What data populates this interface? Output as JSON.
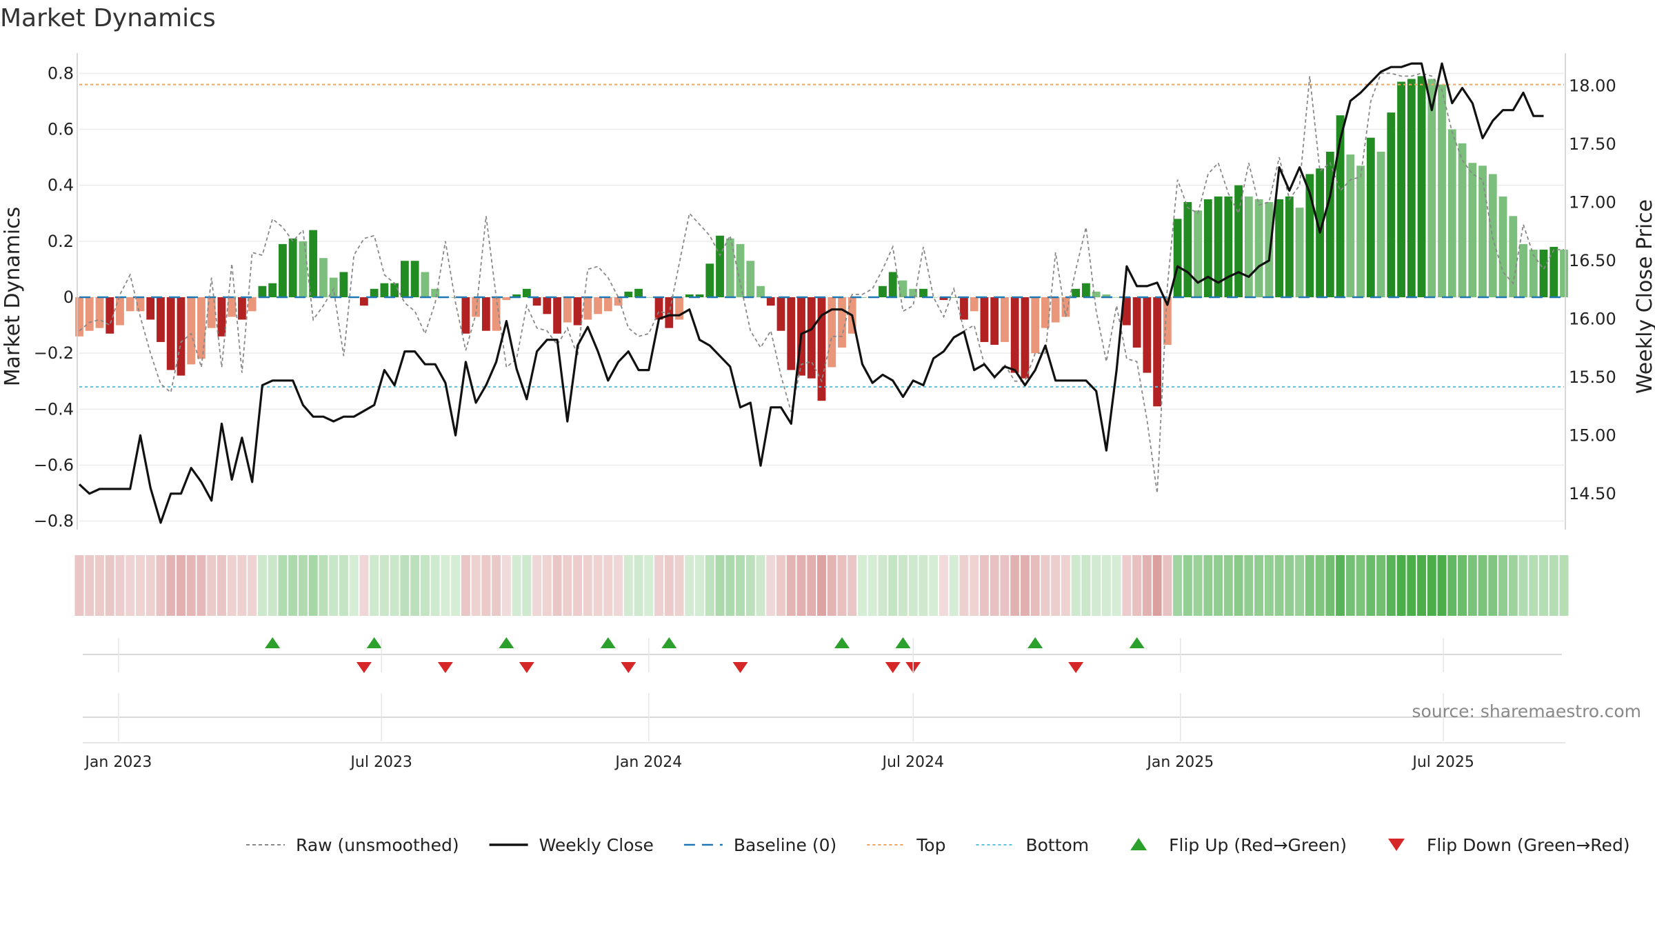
{
  "chart_data": {
    "type": "bar",
    "title": "Market Dynamics",
    "source": "source: sharemaestro.com",
    "ylabel_left": "Market Dynamics",
    "ylabel_right": "Weekly Close Price",
    "ylim_left": [
      -0.86,
      0.86
    ],
    "ylim_right": [
      14.12,
      18.25
    ],
    "yticks_left": [
      0.8,
      0.6,
      0.4,
      0.2,
      0,
      -0.2,
      -0.4,
      -0.6,
      -0.8
    ],
    "ytick_labels_left": [
      "0.8",
      "0.6",
      "0.4",
      "0.2",
      "0",
      "−0.2",
      "−0.4",
      "−0.6",
      "−0.8"
    ],
    "yticks_right": [
      18.0,
      17.5,
      17.0,
      16.5,
      16.0,
      15.5,
      15.0,
      14.5
    ],
    "ytick_labels_right": [
      "18.00",
      "17.50",
      "17.00",
      "16.50",
      "16.00",
      "15.50",
      "15.00",
      "14.50"
    ],
    "x_range": [
      "2022-12-05",
      "2025-09-22"
    ],
    "date_ticks": [
      {
        "date": "2023-01-01",
        "label": "Jan 2023"
      },
      {
        "date": "2023-07-01",
        "label": "Jul 2023"
      },
      {
        "date": "2024-01-01",
        "label": "Jan 2024"
      },
      {
        "date": "2024-07-01",
        "label": "Jul 2024"
      },
      {
        "date": "2025-01-01",
        "label": "Jan 2025"
      },
      {
        "date": "2025-07-01",
        "label": "Jul 2025"
      }
    ],
    "first_week": "2022-12-05",
    "colors": {
      "strong_green": "#228b22",
      "light_green": "#7cbf7c",
      "strong_red": "#b22222",
      "light_red": "#e9967a",
      "price_line": "#111111",
      "raw_line": "#888888",
      "baseline": "#1f77b4",
      "top_line": "#f4a460",
      "bottom_line": "#5bc0de",
      "flip_up": "#2ca02c",
      "flip_down": "#d62728"
    },
    "top_level": 0.76,
    "bottom_level": -0.32,
    "baseline_level": 0,
    "series": [
      {
        "name": "Market Dynamics",
        "values": [
          -0.14,
          -0.12,
          -0.11,
          -0.13,
          -0.1,
          -0.05,
          -0.05,
          -0.08,
          -0.16,
          -0.26,
          -0.28,
          -0.24,
          -0.22,
          -0.11,
          -0.14,
          -0.07,
          -0.08,
          -0.05,
          0.04,
          0.05,
          0.19,
          0.21,
          0.2,
          0.24,
          0.14,
          0.07,
          0.09,
          0.0,
          -0.03,
          0.03,
          0.05,
          0.05,
          0.13,
          0.13,
          0.09,
          0.03,
          0.0,
          0.0,
          -0.13,
          -0.07,
          -0.12,
          -0.12,
          -0.01,
          0.01,
          0.03,
          -0.03,
          -0.06,
          -0.13,
          -0.09,
          -0.1,
          -0.08,
          -0.06,
          -0.05,
          -0.03,
          0.02,
          0.03,
          0.0,
          -0.08,
          -0.11,
          -0.08,
          0.01,
          0.01,
          0.12,
          0.22,
          0.21,
          0.19,
          0.13,
          0.04,
          -0.03,
          -0.12,
          -0.26,
          -0.28,
          -0.29,
          -0.37,
          -0.25,
          -0.18,
          -0.13,
          0.0,
          0.0,
          0.04,
          0.09,
          0.06,
          0.03,
          0.03,
          0.0,
          -0.01,
          0.0,
          -0.08,
          -0.05,
          -0.16,
          -0.17,
          -0.16,
          -0.27,
          -0.29,
          -0.2,
          -0.11,
          -0.09,
          -0.07,
          0.03,
          0.05,
          0.02,
          0.01,
          0.0,
          -0.1,
          -0.18,
          -0.27,
          -0.39,
          -0.17,
          0.28,
          0.34,
          0.31,
          0.35,
          0.36,
          0.36,
          0.4,
          0.36,
          0.35,
          0.34,
          0.35,
          0.36,
          0.32,
          0.44,
          0.46,
          0.52,
          0.65,
          0.51,
          0.47,
          0.57,
          0.52,
          0.66,
          0.77,
          0.78,
          0.79,
          0.78,
          0.76,
          0.6,
          0.55,
          0.48,
          0.47,
          0.44,
          0.36,
          0.29,
          0.19,
          0.17,
          0.17,
          0.18,
          0.17
        ]
      },
      {
        "name": "Raw (unsmoothed)",
        "values": [
          -0.12,
          -0.09,
          -0.08,
          -0.1,
          0.01,
          0.08,
          -0.07,
          -0.2,
          -0.31,
          -0.34,
          -0.16,
          -0.13,
          -0.25,
          0.07,
          -0.25,
          0.12,
          -0.27,
          0.16,
          0.15,
          0.28,
          0.25,
          0.2,
          0.24,
          -0.08,
          -0.03,
          0.03,
          -0.21,
          0.15,
          0.21,
          0.22,
          0.08,
          0.05,
          -0.02,
          -0.05,
          -0.13,
          -0.02,
          0.2,
          -0.02,
          -0.19,
          -0.06,
          0.29,
          0.0,
          -0.25,
          -0.22,
          -0.03,
          -0.11,
          -0.12,
          -0.17,
          -0.11,
          -0.21,
          0.1,
          0.11,
          0.07,
          0.0,
          -0.11,
          -0.14,
          -0.13,
          -0.05,
          -0.06,
          0.12,
          0.3,
          0.26,
          0.22,
          0.15,
          0.22,
          0.05,
          -0.12,
          -0.18,
          -0.12,
          -0.28,
          -0.41,
          -0.24,
          -0.23,
          -0.3,
          -0.14,
          -0.14,
          0.01,
          0.01,
          0.03,
          0.1,
          0.18,
          -0.05,
          -0.03,
          0.18,
          0.0,
          -0.07,
          0.03,
          -0.12,
          -0.1,
          -0.24,
          -0.29,
          -0.24,
          -0.3,
          -0.3,
          -0.2,
          -0.2,
          0.16,
          -0.07,
          0.1,
          0.25,
          -0.05,
          -0.23,
          -0.03,
          -0.22,
          -0.23,
          -0.44,
          -0.7,
          0.04,
          0.42,
          0.32,
          0.3,
          0.44,
          0.48,
          0.37,
          0.3,
          0.48,
          0.33,
          0.34,
          0.5,
          0.35,
          0.4,
          0.79,
          0.45,
          0.48,
          0.38,
          0.42,
          0.43,
          0.7,
          0.8,
          0.8,
          0.79,
          0.79,
          0.8,
          0.79,
          0.74,
          0.59,
          0.49,
          0.44,
          0.42,
          0.21,
          0.09,
          0.05,
          0.26,
          0.15,
          0.1,
          0.17,
          0.17
        ]
      },
      {
        "name": "Weekly Close",
        "values": [
          14.58,
          14.5,
          14.54,
          14.54,
          14.54,
          14.54,
          15.0,
          14.55,
          14.25,
          14.5,
          14.5,
          14.72,
          14.6,
          14.44,
          15.1,
          14.62,
          14.98,
          14.6,
          15.43,
          15.47,
          15.47,
          15.47,
          15.26,
          15.16,
          15.16,
          15.12,
          15.16,
          15.16,
          15.21,
          15.26,
          15.56,
          15.43,
          15.72,
          15.72,
          15.61,
          15.61,
          15.45,
          15.0,
          15.63,
          15.28,
          15.43,
          15.63,
          15.98,
          15.57,
          15.31,
          15.72,
          15.82,
          15.82,
          15.12,
          15.77,
          15.93,
          15.72,
          15.47,
          15.63,
          15.72,
          15.56,
          15.56,
          16.0,
          16.03,
          16.03,
          16.08,
          15.82,
          15.77,
          15.68,
          15.59,
          15.24,
          15.28,
          14.74,
          15.24,
          15.24,
          15.1,
          15.87,
          15.91,
          16.03,
          16.08,
          16.08,
          16.03,
          15.61,
          15.45,
          15.52,
          15.47,
          15.33,
          15.47,
          15.43,
          15.66,
          15.72,
          15.84,
          15.89,
          15.56,
          15.61,
          15.5,
          15.59,
          15.56,
          15.43,
          15.56,
          15.77,
          15.47,
          15.47,
          15.47,
          15.47,
          15.38,
          14.87,
          15.56,
          16.45,
          16.28,
          16.28,
          16.31,
          16.12,
          16.45,
          16.4,
          16.31,
          16.36,
          16.31,
          16.36,
          16.4,
          16.36,
          16.45,
          16.5,
          17.3,
          17.1,
          17.3,
          17.08,
          16.74,
          17.05,
          17.54,
          17.87,
          17.94,
          18.03,
          18.12,
          18.16,
          18.16,
          18.19,
          18.19,
          17.79,
          18.19,
          17.85,
          17.98,
          17.85,
          17.55,
          17.7,
          17.79,
          17.79,
          17.94,
          17.74,
          17.74
        ]
      }
    ],
    "flips_up": [
      19,
      29,
      42,
      52,
      58,
      75,
      81,
      94,
      104
    ],
    "flips_down": [
      28,
      36,
      44,
      54,
      65,
      80,
      82,
      98
    ],
    "legend": [
      {
        "label": "Raw (unsmoothed)",
        "style": "dashed-gray"
      },
      {
        "label": "Weekly Close",
        "style": "solid-black"
      },
      {
        "label": "Baseline (0)",
        "style": "dashed-blue"
      },
      {
        "label": "Top",
        "style": "dotted-orange"
      },
      {
        "label": "Bottom",
        "style": "dotted-cyan"
      },
      {
        "label": "Flip Up (Red→Green)",
        "style": "triangle-up"
      },
      {
        "label": "Flip Down (Green→Red)",
        "style": "triangle-down"
      }
    ]
  }
}
